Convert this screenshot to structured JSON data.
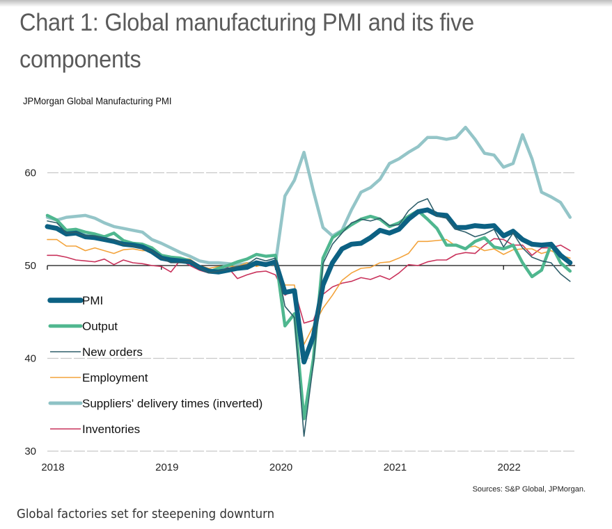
{
  "page": {
    "title": "Chart 1: Global manufacturing PMI and its five components",
    "caption": "Global factories set for steepening downturn",
    "source": "Sources: S&P Global, JPMorgan."
  },
  "chart_data": {
    "type": "line",
    "title": "Chart 1: Global manufacturing PMI and its five components",
    "subtitle": "JPMorgan Global Manufacturing PMI",
    "xlabel": "",
    "ylabel": "",
    "x_start": "2018-01",
    "x_end": "2022-08",
    "x_frequency": "monthly",
    "x_ticks": [
      "2018",
      "2019",
      "2020",
      "2021",
      "2022"
    ],
    "y_ticks": [
      30,
      40,
      50,
      60
    ],
    "ylim": [
      30,
      65
    ],
    "reference_line": 50,
    "grid": "horizontal dashed",
    "legend_position": "bottom-left",
    "series": [
      {
        "name": "PMI",
        "color": "#0c6183",
        "style": "thick",
        "values": [
          54.2,
          54.0,
          53.4,
          53.5,
          53.1,
          53.0,
          52.8,
          52.6,
          52.3,
          52.2,
          52.0,
          51.5,
          50.8,
          50.6,
          50.5,
          50.4,
          49.8,
          49.4,
          49.3,
          49.5,
          49.7,
          49.8,
          50.3,
          50.1,
          50.4,
          47.1,
          47.3,
          39.6,
          42.4,
          47.9,
          50.3,
          51.8,
          52.3,
          52.4,
          53.0,
          53.8,
          53.5,
          53.9,
          55.0,
          55.8,
          56.0,
          55.5,
          55.4,
          54.1,
          54.1,
          54.3,
          54.2,
          54.3,
          53.2,
          53.7,
          52.8,
          52.3,
          52.2,
          52.3,
          51.1,
          50.3
        ]
      },
      {
        "name": "Output",
        "color": "#4fb78f",
        "style": "thick",
        "values": [
          55.4,
          54.9,
          53.8,
          53.9,
          53.6,
          53.4,
          53.1,
          53.5,
          52.7,
          52.4,
          52.3,
          51.9,
          51.1,
          50.9,
          50.8,
          50.5,
          49.9,
          49.3,
          49.7,
          50.0,
          50.4,
          50.7,
          51.2,
          51.0,
          51.1,
          43.5,
          44.8,
          33.5,
          40.0,
          50.8,
          53.0,
          53.7,
          54.4,
          55.0,
          55.3,
          55.0,
          54.2,
          54.6,
          55.3,
          55.9,
          55.0,
          54.0,
          52.2,
          52.2,
          51.8,
          52.6,
          53.0,
          52.0,
          51.8,
          52.2,
          50.3,
          48.8,
          49.5,
          52.3,
          50.3,
          49.4
        ]
      },
      {
        "name": "New orders",
        "color": "#2e5e6a",
        "style": "thin",
        "values": [
          54.8,
          54.6,
          53.5,
          53.6,
          53.2,
          53.2,
          52.9,
          52.8,
          52.3,
          52.1,
          51.8,
          51.6,
          50.8,
          50.3,
          50.3,
          50.5,
          49.8,
          49.2,
          49.4,
          49.6,
          49.9,
          50.1,
          50.8,
          50.5,
          50.8,
          45.6,
          44.4,
          31.6,
          39.5,
          50.2,
          52.3,
          53.5,
          54.6,
          55.0,
          54.8,
          55.1,
          54.3,
          54.4,
          55.9,
          56.8,
          57.2,
          55.3,
          55.1,
          53.9,
          53.6,
          53.1,
          53.4,
          53.9,
          52.0,
          53.5,
          51.9,
          50.9,
          50.5,
          50.3,
          49.1,
          48.3
        ]
      },
      {
        "name": "Employment",
        "color": "#f3a33b",
        "style": "thin",
        "values": [
          52.8,
          52.8,
          52.1,
          52.1,
          51.6,
          51.9,
          51.6,
          51.3,
          51.7,
          51.8,
          51.6,
          51.6,
          50.9,
          50.9,
          50.8,
          50.7,
          50.0,
          49.7,
          49.9,
          49.9,
          49.9,
          50.3,
          49.9,
          50.2,
          50.1,
          47.9,
          47.9,
          41.5,
          43.5,
          45.4,
          46.8,
          48.4,
          49.2,
          49.7,
          49.8,
          50.3,
          50.4,
          50.8,
          51.3,
          52.6,
          52.6,
          52.7,
          52.8,
          52.1,
          51.9,
          52.1,
          51.6,
          51.8,
          51.2,
          51.7,
          51.8,
          51.8,
          51.3,
          51.6,
          51.1,
          50.8
        ]
      },
      {
        "name": "Suppliers' delivery times (inverted)",
        "color": "#8ec2c5",
        "style": "thick",
        "values": [
          55.2,
          54.9,
          55.2,
          55.3,
          55.4,
          55.1,
          54.6,
          54.2,
          54.0,
          53.8,
          53.6,
          52.8,
          52.4,
          51.9,
          51.4,
          51.0,
          50.5,
          50.3,
          50.3,
          50.2,
          50.1,
          50.2,
          50.3,
          50.1,
          50.2,
          57.5,
          59.2,
          62.2,
          58.0,
          54.1,
          53.2,
          53.8,
          56.0,
          57.9,
          58.4,
          59.3,
          61.0,
          61.5,
          62.2,
          62.8,
          63.8,
          63.8,
          63.6,
          63.8,
          64.9,
          63.6,
          62.1,
          61.9,
          60.6,
          61.0,
          64.1,
          61.5,
          57.9,
          57.4,
          56.8,
          55.2
        ]
      },
      {
        "name": "Inventories",
        "color": "#c9325b",
        "style": "thin",
        "values": [
          51.1,
          51.1,
          50.9,
          50.6,
          50.5,
          50.4,
          50.7,
          50.1,
          50.6,
          50.3,
          50.2,
          50.0,
          49.9,
          49.3,
          50.6,
          50.0,
          49.5,
          49.2,
          49.3,
          49.8,
          48.6,
          49.0,
          49.3,
          49.4,
          49.0,
          46.8,
          47.4,
          43.8,
          44.1,
          46.9,
          47.7,
          48.1,
          48.3,
          48.7,
          48.5,
          48.9,
          48.5,
          49.2,
          50.1,
          50.0,
          50.4,
          50.6,
          50.6,
          51.2,
          51.4,
          51.3,
          52.2,
          52.9,
          52.8,
          52.2,
          52.2,
          51.1,
          51.9,
          51.9,
          52.2,
          51.6
        ]
      }
    ]
  }
}
